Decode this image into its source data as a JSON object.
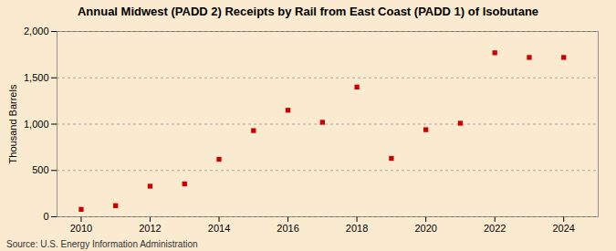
{
  "chart_data": {
    "type": "scatter",
    "title": "Annual Midwest (PADD 2) Receipts by Rail from East Coast (PADD 1) of Isobutane",
    "ylabel": "Thousand Barrels",
    "source": "Source: U.S. Energy Information Administration",
    "x": [
      2010,
      2011,
      2012,
      2013,
      2014,
      2015,
      2016,
      2017,
      2018,
      2019,
      2020,
      2021,
      2022,
      2023,
      2024
    ],
    "values": [
      80,
      120,
      330,
      355,
      620,
      930,
      1150,
      1020,
      1400,
      630,
      940,
      1010,
      1770,
      1720,
      1720
    ],
    "color": "#cc0000",
    "marker": "square",
    "xlim": [
      2009.3,
      2025.0
    ],
    "xticks": [
      2010,
      2012,
      2014,
      2016,
      2018,
      2020,
      2022,
      2024
    ],
    "ylim": [
      0,
      2000
    ],
    "yticks": [
      0,
      500,
      {
        "value": 1000,
        "label": "1,000"
      },
      {
        "value": 1500,
        "label": "1,500"
      },
      {
        "value": 2000,
        "label": "2,000"
      }
    ],
    "grid": true
  }
}
